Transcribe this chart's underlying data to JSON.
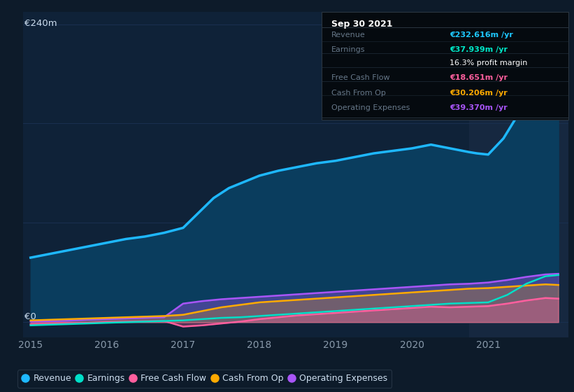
{
  "bg_color": "#0d1b2a",
  "plot_bg": "#0f2238",
  "highlight_bg": "#162840",
  "ylim": [
    -12,
    250
  ],
  "xlim_left": 2014.9,
  "xlim_right": 2022.05,
  "grid_color": "#1a3050",
  "x_ticks": [
    2015,
    2016,
    2017,
    2018,
    2019,
    2020,
    2021
  ],
  "y_label_top": "€240m",
  "y_label_zero": "€0",
  "tooltip_title": "Sep 30 2021",
  "tooltip_rows": [
    {
      "label": "Revenue",
      "value": "€232.616m /yr",
      "value_color": "#1ec8ff",
      "sep_before": true
    },
    {
      "label": "Earnings",
      "value": "€37.939m /yr",
      "value_color": "#00e8c8",
      "sep_before": false
    },
    {
      "label": "",
      "value": "16.3% profit margin",
      "value_color": "#ffffff",
      "sep_before": false
    },
    {
      "label": "Free Cash Flow",
      "value": "€18.651m /yr",
      "value_color": "#ff5f9e",
      "sep_before": true
    },
    {
      "label": "Cash From Op",
      "value": "€30.206m /yr",
      "value_color": "#ffaa00",
      "sep_before": true
    },
    {
      "label": "Operating Expenses",
      "value": "€39.370m /yr",
      "value_color": "#a855f7",
      "sep_before": true
    }
  ],
  "revenue_x": [
    2015.0,
    2015.25,
    2015.5,
    2015.75,
    2016.0,
    2016.25,
    2016.5,
    2016.75,
    2017.0,
    2017.2,
    2017.4,
    2017.6,
    2017.8,
    2018.0,
    2018.25,
    2018.5,
    2018.75,
    2019.0,
    2019.25,
    2019.5,
    2019.75,
    2020.0,
    2020.25,
    2020.5,
    2020.75,
    2020.85,
    2021.0,
    2021.2,
    2021.5,
    2021.75,
    2021.92
  ],
  "revenue_y": [
    52,
    55,
    58,
    61,
    64,
    67,
    69,
    72,
    76,
    88,
    100,
    108,
    113,
    118,
    122,
    125,
    128,
    130,
    133,
    136,
    138,
    140,
    143,
    140,
    137,
    136,
    135,
    148,
    178,
    222,
    235
  ],
  "revenue_color": "#1eb8ff",
  "revenue_fill": "#0a3d5e",
  "earnings_x": [
    2015.0,
    2015.25,
    2015.5,
    2015.75,
    2016.0,
    2016.25,
    2016.5,
    2016.75,
    2017.0,
    2017.25,
    2017.5,
    2017.75,
    2018.0,
    2018.25,
    2018.5,
    2018.75,
    2019.0,
    2019.25,
    2019.5,
    2019.75,
    2020.0,
    2020.25,
    2020.5,
    2020.75,
    2021.0,
    2021.25,
    2021.5,
    2021.75,
    2021.92
  ],
  "earnings_y": [
    -2.5,
    -2,
    -1.5,
    -1,
    -0.5,
    0,
    0.5,
    1,
    1.5,
    2.5,
    3.5,
    4,
    5,
    6,
    7,
    8,
    9,
    10,
    11,
    12,
    13,
    14,
    15,
    15.5,
    16,
    22,
    31,
    37,
    38
  ],
  "earnings_color": "#00dfc8",
  "fcf_x": [
    2015.0,
    2015.25,
    2015.5,
    2015.75,
    2016.0,
    2016.25,
    2016.5,
    2016.75,
    2017.0,
    2017.25,
    2017.5,
    2017.75,
    2018.0,
    2018.25,
    2018.5,
    2018.75,
    2019.0,
    2019.25,
    2019.5,
    2019.75,
    2020.0,
    2020.25,
    2020.5,
    2020.75,
    2021.0,
    2021.25,
    2021.5,
    2021.75,
    2021.92
  ],
  "fcf_y": [
    -1.5,
    -1.2,
    -0.8,
    -0.5,
    0.2,
    0.5,
    0.8,
    1.0,
    -3.5,
    -2.5,
    -1,
    0.5,
    2.5,
    4,
    5.5,
    6.5,
    7.5,
    8.5,
    9.5,
    10.5,
    11.5,
    12.5,
    12,
    12.5,
    13,
    15,
    17.5,
    19.5,
    19
  ],
  "fcf_color": "#ff5f9e",
  "cfo_x": [
    2015.0,
    2015.25,
    2015.5,
    2015.75,
    2016.0,
    2016.25,
    2016.5,
    2016.75,
    2017.0,
    2017.25,
    2017.5,
    2017.75,
    2018.0,
    2018.25,
    2018.5,
    2018.75,
    2019.0,
    2019.25,
    2019.5,
    2019.75,
    2020.0,
    2020.25,
    2020.5,
    2020.75,
    2021.0,
    2021.25,
    2021.5,
    2021.75,
    2021.92
  ],
  "cfo_y": [
    1.5,
    2,
    2.5,
    3,
    3.5,
    4,
    4.5,
    5,
    6,
    9,
    12,
    14,
    16,
    17,
    18,
    19,
    20,
    21,
    22,
    23,
    24,
    25,
    26,
    27,
    27.5,
    28.5,
    29.5,
    30.5,
    30
  ],
  "cfo_color": "#ffaa00",
  "opex_x": [
    2015.0,
    2015.25,
    2015.5,
    2015.75,
    2016.0,
    2016.25,
    2016.5,
    2016.75,
    2017.0,
    2017.25,
    2017.5,
    2017.75,
    2018.0,
    2018.25,
    2018.5,
    2018.75,
    2019.0,
    2019.25,
    2019.5,
    2019.75,
    2020.0,
    2020.25,
    2020.5,
    2020.75,
    2021.0,
    2021.25,
    2021.5,
    2021.75,
    2021.92
  ],
  "opex_y": [
    0.5,
    0.8,
    1.2,
    2,
    2.5,
    3,
    3.5,
    4,
    15,
    17,
    18.5,
    19.5,
    20.5,
    21.5,
    22.5,
    23.5,
    24.5,
    25.5,
    26.5,
    27.5,
    28.5,
    29.5,
    30.5,
    31,
    32,
    34,
    36.5,
    38.5,
    39
  ],
  "opex_color": "#a855f7",
  "highlight_x_start": 2020.75,
  "highlight_x_end": 2022.05,
  "legend_items": [
    {
      "label": "Revenue",
      "color": "#1eb8ff"
    },
    {
      "label": "Earnings",
      "color": "#00dfc8"
    },
    {
      "label": "Free Cash Flow",
      "color": "#ff5f9e"
    },
    {
      "label": "Cash From Op",
      "color": "#ffaa00"
    },
    {
      "label": "Operating Expenses",
      "color": "#a855f7"
    }
  ]
}
